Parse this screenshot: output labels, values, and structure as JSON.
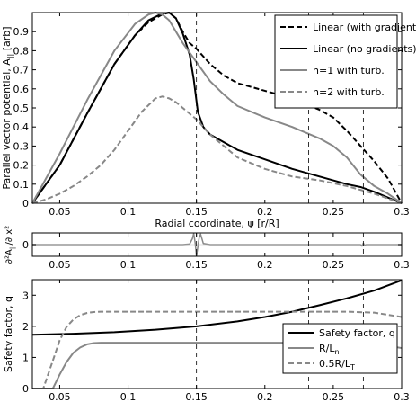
{
  "colors": {
    "linear_grad": "#000000",
    "linear_nograd": "#000000",
    "n1": "#888888",
    "n2": "#888888",
    "safety": "#000000",
    "rln": "#888888",
    "rlt": "#888888",
    "vline": "#000000"
  },
  "chart_data": [
    {
      "type": "line",
      "ylabel": "Parallel vector potential, A",
      "ylabel_sub": "||",
      "ylabel_unit": "[arb]",
      "xlabel": "Radial coordinate, ψ [r/R]",
      "xlim": [
        0.03,
        0.3
      ],
      "ylim": [
        0,
        1
      ],
      "xticks": [
        0.05,
        0.1,
        0.15,
        0.2,
        0.25,
        0.3
      ],
      "xtick_labels": [
        "0.05",
        "0.1",
        "0.15",
        "0.2",
        "0.25",
        "0.3"
      ],
      "yticks": [
        0,
        0.1,
        0.2,
        0.3,
        0.4,
        0.5,
        0.6,
        0.7,
        0.8,
        0.9
      ],
      "ytick_labels": [
        "0",
        "0.1",
        "0.2",
        "0.3",
        "0.4",
        "0.5",
        "0.6",
        "0.7",
        "0.8",
        "0.9"
      ],
      "vlines": [
        0.15,
        0.232,
        0.272
      ],
      "legend_position": "top-right",
      "series": [
        {
          "name": "Linear (with gradients)",
          "style": "dashed-black",
          "x": [
            0.03,
            0.05,
            0.07,
            0.09,
            0.105,
            0.115,
            0.125,
            0.13,
            0.135,
            0.14,
            0.145,
            0.15,
            0.155,
            0.16,
            0.17,
            0.18,
            0.2,
            0.22,
            0.24,
            0.25,
            0.26,
            0.27,
            0.28,
            0.29,
            0.3
          ],
          "y": [
            0,
            0.2,
            0.47,
            0.73,
            0.88,
            0.95,
            0.99,
            1.0,
            0.97,
            0.9,
            0.84,
            0.81,
            0.77,
            0.73,
            0.67,
            0.63,
            0.59,
            0.55,
            0.49,
            0.45,
            0.38,
            0.3,
            0.22,
            0.13,
            0
          ]
        },
        {
          "name": "Linear (no gradients)",
          "style": "solid-black",
          "x": [
            0.03,
            0.05,
            0.07,
            0.09,
            0.105,
            0.115,
            0.125,
            0.13,
            0.135,
            0.14,
            0.145,
            0.148,
            0.151,
            0.155,
            0.16,
            0.17,
            0.18,
            0.2,
            0.22,
            0.24,
            0.25,
            0.26,
            0.27,
            0.28,
            0.29,
            0.3
          ],
          "y": [
            0,
            0.2,
            0.47,
            0.73,
            0.88,
            0.96,
            0.995,
            1.0,
            0.97,
            0.89,
            0.78,
            0.65,
            0.48,
            0.4,
            0.36,
            0.32,
            0.28,
            0.23,
            0.18,
            0.14,
            0.12,
            0.1,
            0.085,
            0.06,
            0.03,
            0
          ]
        },
        {
          "name": "n=1 with turb.",
          "style": "solid-gray",
          "x": [
            0.03,
            0.05,
            0.07,
            0.09,
            0.105,
            0.115,
            0.12,
            0.125,
            0.13,
            0.135,
            0.14,
            0.15,
            0.16,
            0.17,
            0.18,
            0.2,
            0.22,
            0.24,
            0.25,
            0.26,
            0.27,
            0.28,
            0.29,
            0.3
          ],
          "y": [
            0,
            0.26,
            0.54,
            0.8,
            0.94,
            0.99,
            1.0,
            0.99,
            0.96,
            0.9,
            0.84,
            0.74,
            0.64,
            0.57,
            0.51,
            0.45,
            0.4,
            0.34,
            0.3,
            0.24,
            0.15,
            0.09,
            0.05,
            0
          ]
        },
        {
          "name": "n=2 with turb.",
          "style": "dashed-gray",
          "x": [
            0.03,
            0.04,
            0.05,
            0.06,
            0.07,
            0.08,
            0.09,
            0.1,
            0.11,
            0.12,
            0.125,
            0.13,
            0.135,
            0.14,
            0.15,
            0.16,
            0.17,
            0.18,
            0.2,
            0.22,
            0.24,
            0.26,
            0.28,
            0.3
          ],
          "y": [
            0,
            0.02,
            0.05,
            0.09,
            0.14,
            0.2,
            0.28,
            0.38,
            0.48,
            0.55,
            0.56,
            0.55,
            0.53,
            0.5,
            0.44,
            0.36,
            0.3,
            0.24,
            0.18,
            0.14,
            0.12,
            0.09,
            0.05,
            0
          ]
        }
      ]
    },
    {
      "type": "line",
      "ylabel": "∂²A",
      "ylabel_sub": "||",
      "ylabel_rest": "/∂ x²",
      "xlim": [
        0.03,
        0.3
      ],
      "ylim": [
        -1,
        1
      ],
      "yticks": [
        0
      ],
      "ytick_labels": [
        "0"
      ],
      "xticks": [
        0.05,
        0.1,
        0.15,
        0.2,
        0.25,
        0.3
      ],
      "xtick_labels": [
        "0.05",
        "0.1",
        "0.15",
        "0.2",
        "0.25",
        "0.3"
      ],
      "vlines": [
        0.15,
        0.232,
        0.272
      ],
      "series": [
        {
          "style": "solid-gray",
          "x": [
            0.03,
            0.1,
            0.14,
            0.145,
            0.147,
            0.148,
            0.149,
            0.15,
            0.151,
            0.152,
            0.153,
            0.155,
            0.16,
            0.2,
            0.27,
            0.271,
            0.272,
            0.273,
            0.274,
            0.3
          ],
          "y": [
            0,
            0,
            0,
            0.05,
            0.5,
            0.95,
            0.2,
            -0.95,
            -0.2,
            0.6,
            0.9,
            0.1,
            0,
            0,
            0,
            -0.12,
            0.12,
            -0.06,
            0,
            0
          ]
        }
      ]
    },
    {
      "type": "line",
      "ylabel": "Safety factor, q",
      "xlim": [
        0.03,
        0.3
      ],
      "ylim": [
        0,
        3.5
      ],
      "xticks": [
        0.05,
        0.1,
        0.15,
        0.2,
        0.25,
        0.3
      ],
      "xtick_labels": [
        "0.05",
        "0.1",
        "0.15",
        "0.2",
        "0.25",
        "0.3"
      ],
      "yticks": [
        0,
        1,
        2,
        3
      ],
      "ytick_labels": [
        "0",
        "1",
        "2",
        "3"
      ],
      "vlines": [
        0.15,
        0.232,
        0.272
      ],
      "legend_position": "bottom-right",
      "series": [
        {
          "name": "Safety factor, q",
          "style": "solid-black",
          "x": [
            0.03,
            0.06,
            0.09,
            0.12,
            0.15,
            0.18,
            0.2,
            0.22,
            0.24,
            0.26,
            0.28,
            0.3
          ],
          "y": [
            1.73,
            1.76,
            1.81,
            1.89,
            2.0,
            2.16,
            2.3,
            2.47,
            2.68,
            2.9,
            3.15,
            3.48
          ]
        },
        {
          "name": "R/L",
          "name_sub": "n",
          "style": "solid-gray",
          "x": [
            0.03,
            0.045,
            0.05,
            0.055,
            0.06,
            0.065,
            0.07,
            0.075,
            0.08,
            0.1,
            0.2,
            0.26,
            0.28,
            0.3
          ],
          "y": [
            0,
            0,
            0.45,
            0.85,
            1.15,
            1.32,
            1.42,
            1.46,
            1.47,
            1.47,
            1.47,
            1.47,
            1.45,
            1.3
          ]
        },
        {
          "name": "0.5R/L",
          "name_sub": "T",
          "style": "dashed-gray",
          "x": [
            0.03,
            0.038,
            0.045,
            0.05,
            0.055,
            0.06,
            0.065,
            0.07,
            0.075,
            0.08,
            0.1,
            0.2,
            0.26,
            0.28,
            0.3
          ],
          "y": [
            0,
            0,
            0.9,
            1.55,
            1.98,
            2.22,
            2.36,
            2.43,
            2.46,
            2.47,
            2.47,
            2.47,
            2.47,
            2.44,
            2.3
          ]
        }
      ]
    }
  ]
}
